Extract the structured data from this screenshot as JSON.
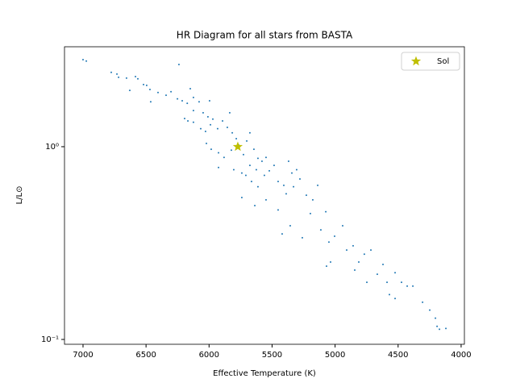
{
  "chart_data": {
    "type": "scatter",
    "title": "HR Diagram for all stars from BASTA",
    "x_label": "Effective Temperature (K)",
    "y_label": "L/L⊙",
    "xlim": [
      7147,
      3974
    ],
    "ylim": [
      0.0944,
      3.3
    ],
    "ylog": true,
    "xticks": [
      7000,
      6500,
      6000,
      5500,
      5000,
      4500,
      4000
    ],
    "yticks": [
      {
        "value": 0.1,
        "label": "10⁻¹"
      },
      {
        "value": 1,
        "label": "10⁰"
      }
    ],
    "legend": "upper right",
    "series": [
      {
        "color": "#1f77b4",
        "marker": "dot",
        "x": [
          7000,
          6974,
          6776,
          6731,
          6718,
          6655,
          6584,
          6565,
          6520,
          6495,
          6469,
          6629,
          6405,
          6341,
          6302,
          6239,
          6463,
          6251,
          6213,
          6173,
          6149,
          6124,
          6079,
          6194,
          6168,
          6124,
          6047,
          6009,
          5970,
          6066,
          6028,
          5989,
          5932,
          5893,
          5855,
          5816,
          5784,
          6021,
          5983,
          5925,
          5881,
          5823,
          5765,
          5727,
          5701,
          5676,
          5644,
          5612,
          5925,
          5804,
          5740,
          5676,
          5625,
          5580,
          5548,
          5708,
          5663,
          5612,
          5561,
          5522,
          5484,
          5452,
          5407,
          5369,
          5343,
          5305,
          5740,
          5637,
          5548,
          5452,
          5388,
          5330,
          5279,
          5228,
          5177,
          5138,
          5074,
          5420,
          5356,
          5260,
          5196,
          5113,
          5049,
          5004,
          4940,
          4908,
          4857,
          4812,
          4768,
          4716,
          4665,
          4620,
          4588,
          4524,
          4473,
          4428,
          4383,
          4569,
          4524,
          4306,
          4249,
          4204,
          4191,
          4172,
          4121,
          5068,
          5036,
          4748,
          4844,
          5996,
          5836,
          6124
        ],
        "values": [
          2.83,
          2.78,
          2.43,
          2.38,
          2.29,
          2.27,
          2.31,
          2.25,
          2.1,
          2.08,
          1.98,
          1.96,
          1.91,
          1.85,
          1.93,
          2.67,
          1.71,
          1.77,
          1.73,
          1.68,
          2.0,
          1.8,
          1.71,
          1.4,
          1.36,
          1.34,
          1.5,
          1.43,
          1.39,
          1.24,
          1.2,
          1.3,
          1.24,
          1.36,
          1.26,
          1.18,
          1.1,
          1.04,
          0.97,
          0.93,
          0.88,
          0.96,
          1.02,
          0.91,
          1.07,
          1.18,
          0.97,
          0.87,
          0.78,
          0.76,
          0.73,
          0.8,
          0.76,
          0.84,
          0.88,
          0.71,
          0.66,
          0.62,
          0.71,
          0.75,
          0.8,
          0.66,
          0.63,
          0.84,
          0.73,
          0.76,
          0.545,
          0.495,
          0.53,
          0.47,
          0.57,
          0.62,
          0.68,
          0.56,
          0.53,
          0.63,
          0.46,
          0.353,
          0.389,
          0.337,
          0.45,
          0.37,
          0.32,
          0.343,
          0.389,
          0.291,
          0.306,
          0.252,
          0.277,
          0.291,
          0.218,
          0.245,
          0.198,
          0.222,
          0.198,
          0.189,
          0.189,
          0.171,
          0.163,
          0.156,
          0.142,
          0.129,
          0.117,
          0.113,
          0.114,
          0.24,
          0.252,
          0.198,
          0.229,
          1.73,
          1.5,
          1.54
        ]
      },
      {
        "name": "Sol",
        "color": "#bfbf00",
        "marker": "star",
        "x": [
          5772
        ],
        "values": [
          1
        ]
      }
    ]
  }
}
